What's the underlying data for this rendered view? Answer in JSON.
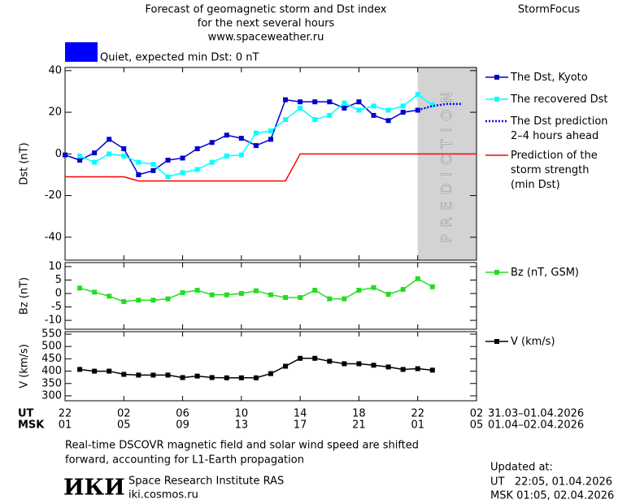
{
  "header": {
    "title": [
      "Forecast of geomagnetic storm and Dst index",
      "for the next several hours",
      "www.spaceweather.ru"
    ],
    "brand": "StormFocus",
    "status": "Quiet, expected min Dst: 0 nT",
    "status_color": "#0000ff"
  },
  "chart_data": [
    {
      "type": "line",
      "ylabel": "Dst (nT)",
      "xlim": [
        0,
        28
      ],
      "ylim": [
        -51,
        41.5
      ],
      "yticks": [
        40,
        20,
        0,
        -20,
        -40
      ],
      "band": {
        "from": 24,
        "to": 28,
        "label": "PREDICTION",
        "color": "#d3d3d3"
      },
      "series": [
        {
          "name": "The Dst, Kyoto",
          "color": "#0000cc",
          "marker": "square",
          "x": [
            0,
            1,
            2,
            3,
            4,
            5,
            6,
            7,
            8,
            9,
            10,
            11,
            12,
            13,
            14,
            15,
            16,
            17,
            18,
            19,
            20,
            21,
            22,
            23,
            24
          ],
          "values": [
            -0.5,
            -3,
            0.5,
            7,
            2.5,
            -10,
            -8,
            -3,
            -2,
            2.5,
            5.5,
            9,
            7.5,
            4,
            7,
            26,
            25,
            25,
            25,
            22,
            25,
            18.5,
            16,
            20,
            21
          ]
        },
        {
          "name": "The recovered Dst",
          "color": "#00ffff",
          "marker": "square",
          "x": [
            1,
            2,
            3,
            4,
            5,
            6,
            7,
            8,
            9,
            10,
            11,
            12,
            13,
            14,
            15,
            16,
            17,
            18,
            19,
            20,
            21,
            22,
            23,
            24,
            25
          ],
          "values": [
            -1,
            -4,
            0,
            -1,
            -4,
            -5,
            -11,
            -9,
            -7.5,
            -4,
            -1,
            -0.5,
            10,
            11,
            16.5,
            22,
            16.5,
            18.5,
            24.5,
            21,
            23,
            21,
            23,
            28.5,
            23.5
          ]
        },
        {
          "name": "The Dst prediction\n2–4 hours ahead",
          "color": "#0000ff",
          "marker": "none",
          "dash": true,
          "x": [
            24,
            25,
            26,
            27
          ],
          "values": [
            21,
            23,
            24,
            24
          ]
        },
        {
          "name": "Prediction of the\nstorm strength\n(min Dst)",
          "color": "#ff0000",
          "marker": "none",
          "x": [
            0,
            4,
            5,
            15,
            16,
            28
          ],
          "values": [
            -11,
            -11,
            -13,
            -13,
            0,
            0
          ]
        }
      ]
    },
    {
      "type": "line",
      "ylabel": "Bz (nT)",
      "xlim": [
        0,
        28
      ],
      "ylim": [
        -13.3,
        11.5
      ],
      "yticks": [
        10,
        5,
        0,
        -5,
        -10
      ],
      "series": [
        {
          "name": "Bz (nT, GSM)",
          "color": "#22dd22",
          "marker": "square",
          "x": [
            1,
            2,
            3,
            4,
            5,
            6,
            7,
            8,
            9,
            10,
            11,
            12,
            13,
            14,
            15,
            16,
            17,
            18,
            19,
            20,
            21,
            22,
            23,
            24,
            25
          ],
          "values": [
            2,
            0.5,
            -1,
            -3,
            -2.5,
            -2.5,
            -2,
            0.3,
            1.2,
            -0.5,
            -0.5,
            0,
            1,
            -0.5,
            -1.5,
            -1.5,
            1.2,
            -2,
            -2,
            1.2,
            2.2,
            -0.3,
            1.5,
            5.5,
            2.5
          ]
        }
      ]
    },
    {
      "type": "line",
      "ylabel": "V (km/s)",
      "xlim": [
        0,
        28
      ],
      "ylim": [
        280,
        560
      ],
      "yticks": [
        550,
        500,
        450,
        400,
        350,
        300
      ],
      "xlabel": "UT",
      "x2label": "MSK",
      "xticks": [
        {
          "value": 0,
          "label": "22"
        },
        {
          "value": 4,
          "label": "02"
        },
        {
          "value": 8,
          "label": "06"
        },
        {
          "value": 12,
          "label": "10"
        },
        {
          "value": 16,
          "label": "14"
        },
        {
          "value": 20,
          "label": "18"
        },
        {
          "value": 24,
          "label": "22"
        },
        {
          "value": 28,
          "label": "02"
        }
      ],
      "x2ticks": [
        {
          "value": 0,
          "label": "01"
        },
        {
          "value": 4,
          "label": "05"
        },
        {
          "value": 8,
          "label": "09"
        },
        {
          "value": 12,
          "label": "13"
        },
        {
          "value": 16,
          "label": "17"
        },
        {
          "value": 20,
          "label": "21"
        },
        {
          "value": 24,
          "label": "01"
        },
        {
          "value": 28,
          "label": "05"
        }
      ],
      "date_range": "31.03–01.04.2026",
      "date_range2": "01.04–02.04.2026",
      "series": [
        {
          "name": "V (km/s)",
          "color": "#000000",
          "marker": "square",
          "x": [
            1,
            2,
            3,
            4,
            5,
            6,
            7,
            8,
            9,
            10,
            11,
            12,
            13,
            14,
            15,
            16,
            17,
            18,
            19,
            20,
            21,
            22,
            23,
            24,
            25
          ],
          "values": [
            407,
            400,
            400,
            387,
            384,
            384,
            384,
            374,
            380,
            374,
            373,
            373,
            373,
            390,
            420,
            452,
            452,
            440,
            430,
            430,
            424,
            417,
            407,
            410,
            404
          ]
        }
      ]
    }
  ],
  "footer": {
    "note": [
      "Real-time DSCOVR magnetic field and solar wind speed are shifted",
      "forward, accounting for L1-Earth propagation"
    ],
    "logo": "ИКИ",
    "institute": "Space Research Institute RAS",
    "url": "iki.cosmos.ru",
    "updated_label": "Updated at:",
    "updated_ut": "UT   22:05, 01.04.2026",
    "updated_msk": "MSK 01:05, 02.04.2026"
  }
}
